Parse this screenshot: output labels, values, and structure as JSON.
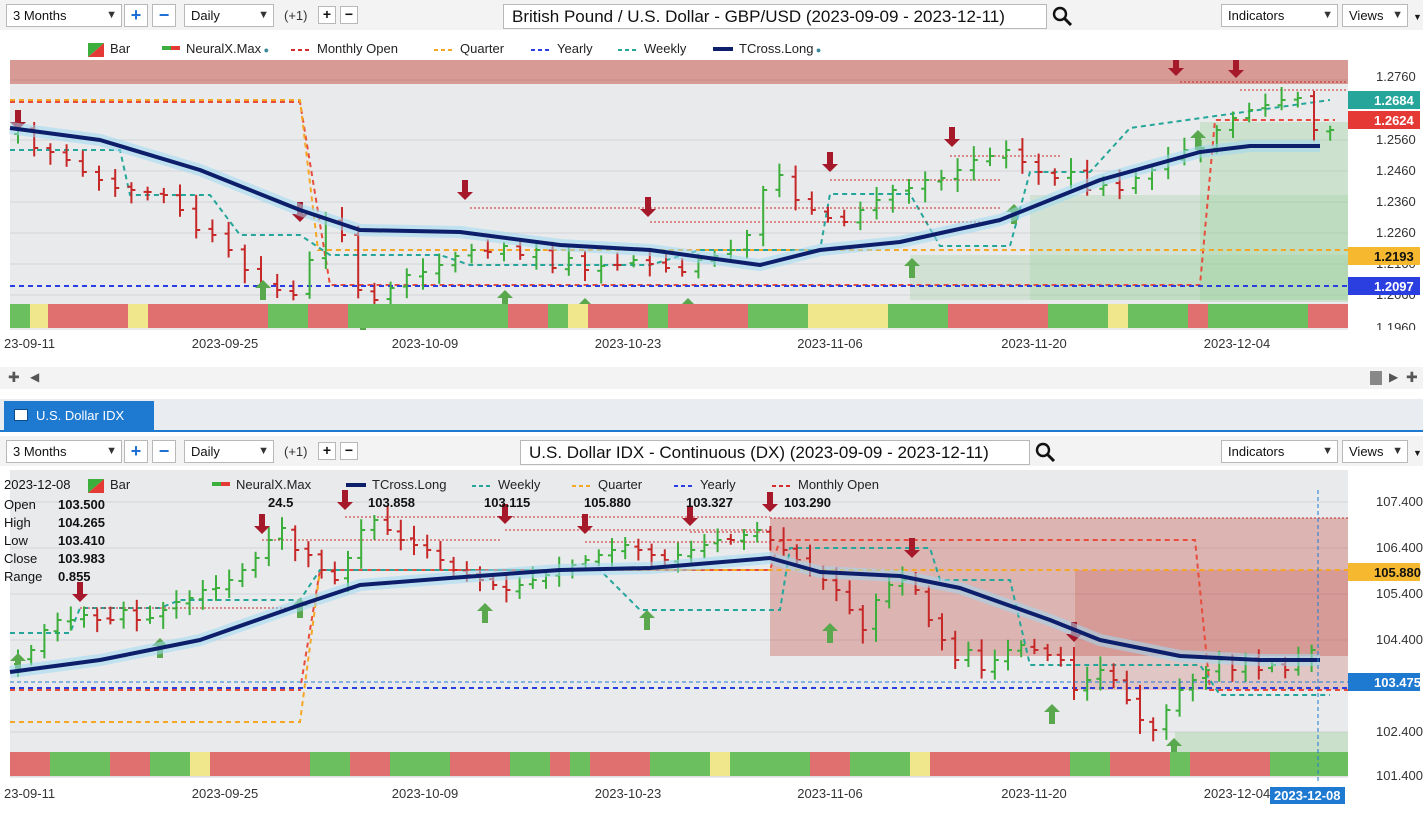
{
  "top": {
    "range_label": "3 Months",
    "interval_label": "Daily",
    "plus_one": "(+1)",
    "title": "British Pound / U.S. Dollar - GBP/USD (2023-09-09 - 2023-12-11)",
    "indicators_label": "Indicators",
    "views_label": "Views",
    "legend": [
      "Bar",
      "NeuralX.Max",
      "Monthly Open",
      "Quarter",
      "Yearly",
      "Weekly",
      "TCross.Long"
    ],
    "price_ticks": [
      "1.2760",
      "1.2560",
      "1.2460",
      "1.2360",
      "1.2260",
      "1.2160",
      "1.2060",
      "1.1960"
    ],
    "price_tags": [
      {
        "value": "1.2684",
        "color": "#26a69a"
      },
      {
        "value": "1.2624",
        "color": "#e53935"
      },
      {
        "value": "1.2193",
        "color": "#f5b82e"
      },
      {
        "value": "1.2097",
        "color": "#2b3fe0"
      }
    ],
    "date_ticks": [
      "23-09-11",
      "2023-09-25",
      "2023-10-09",
      "2023-10-23",
      "2023-11-06",
      "2023-11-20",
      "2023-12-04"
    ]
  },
  "bottom": {
    "tab_label": "U.S. Dollar IDX (DX)",
    "range_label": "3 Months",
    "interval_label": "Daily",
    "plus_one": "(+1)",
    "title": "U.S. Dollar IDX - Continuous (DX) (2023-09-09 - 2023-12-11)",
    "indicators_label": "Indicators",
    "views_label": "Views",
    "info_date": "2023-12-08",
    "info": [
      {
        "k": "Open",
        "v": "103.500"
      },
      {
        "k": "High",
        "v": "104.265"
      },
      {
        "k": "Low",
        "v": "103.410"
      },
      {
        "k": "Close",
        "v": "103.983"
      },
      {
        "k": "Range",
        "v": "0.855"
      }
    ],
    "legend": [
      "Bar",
      "NeuralX.Max",
      "TCross.Long",
      "Weekly",
      "Quarter",
      "Yearly",
      "Monthly Open"
    ],
    "legend_values": [
      "24.5",
      "103.858",
      "103.115",
      "105.880",
      "103.327",
      "103.290"
    ],
    "price_ticks": [
      "107.400",
      "106.400",
      "105.400",
      "104.400",
      "102.400",
      "101.400"
    ],
    "price_tags": [
      {
        "value": "105.880",
        "color": "#f5b82e"
      },
      {
        "value": "103.475",
        "color": "#1e79d1"
      }
    ],
    "date_ticks": [
      "23-09-11",
      "2023-09-25",
      "2023-10-09",
      "2023-10-23",
      "2023-11-06",
      "2023-11-20",
      "2023-12-04"
    ],
    "crosshair_date": "2023-12-08"
  }
}
